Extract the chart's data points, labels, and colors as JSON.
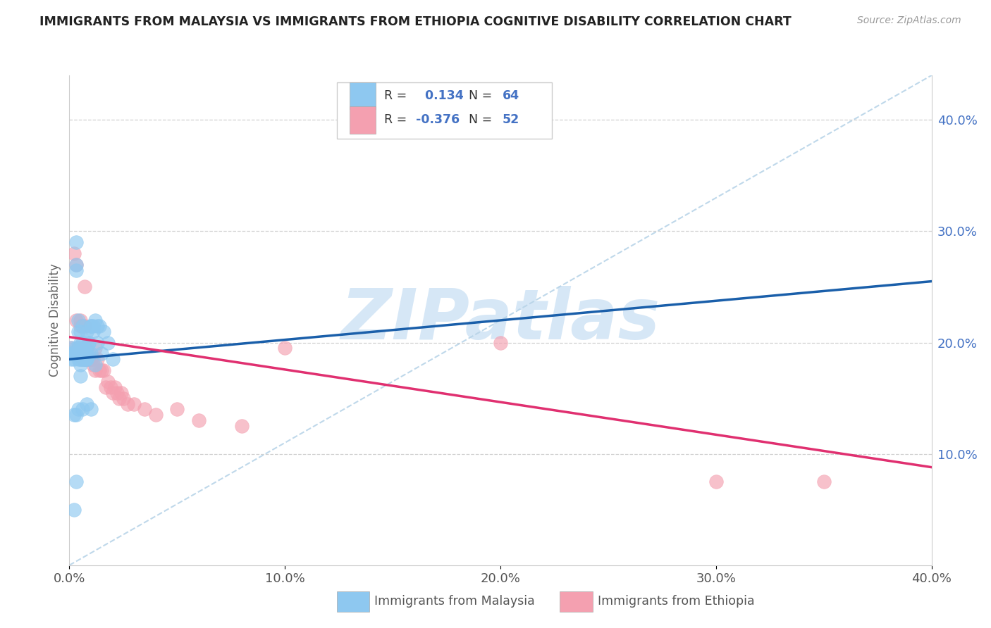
{
  "title": "IMMIGRANTS FROM MALAYSIA VS IMMIGRANTS FROM ETHIOPIA COGNITIVE DISABILITY CORRELATION CHART",
  "source": "Source: ZipAtlas.com",
  "ylabel": "Cognitive Disability",
  "xmin": 0.0,
  "xmax": 0.4,
  "ymin": 0.0,
  "ymax": 0.44,
  "yticks_right": [
    0.1,
    0.2,
    0.3,
    0.4
  ],
  "xtick_vals": [
    0.0,
    0.1,
    0.2,
    0.3,
    0.4
  ],
  "malaysia_color": "#8ec8f0",
  "ethiopia_color": "#f4a0b0",
  "malaysia_line_color": "#1a5faa",
  "ethiopia_line_color": "#e03070",
  "ref_line_color": "#b8d4e8",
  "malaysia_R": 0.134,
  "malaysia_N": 64,
  "ethiopia_R": -0.376,
  "ethiopia_N": 52,
  "malaysia_line_x0": 0.0,
  "malaysia_line_y0": 0.185,
  "malaysia_line_x1": 0.4,
  "malaysia_line_y1": 0.255,
  "ethiopia_line_x0": 0.0,
  "ethiopia_line_y0": 0.205,
  "ethiopia_line_x1": 0.4,
  "ethiopia_line_y1": 0.088,
  "ref_line_x0": 0.0,
  "ref_line_y0": 0.0,
  "ref_line_x1": 0.4,
  "ref_line_y1": 0.44,
  "malaysia_x": [
    0.001,
    0.001,
    0.002,
    0.002,
    0.002,
    0.003,
    0.003,
    0.003,
    0.003,
    0.004,
    0.004,
    0.004,
    0.004,
    0.004,
    0.004,
    0.005,
    0.005,
    0.005,
    0.005,
    0.005,
    0.005,
    0.006,
    0.006,
    0.006,
    0.006,
    0.006,
    0.006,
    0.007,
    0.007,
    0.007,
    0.007,
    0.007,
    0.008,
    0.008,
    0.008,
    0.008,
    0.008,
    0.009,
    0.009,
    0.009,
    0.01,
    0.01,
    0.01,
    0.011,
    0.011,
    0.012,
    0.012,
    0.013,
    0.013,
    0.014,
    0.015,
    0.016,
    0.018,
    0.02,
    0.003,
    0.004,
    0.002,
    0.006,
    0.008,
    0.01,
    0.003,
    0.002,
    0.001,
    0.005
  ],
  "malaysia_y": [
    0.195,
    0.185,
    0.19,
    0.185,
    0.19,
    0.29,
    0.27,
    0.265,
    0.195,
    0.21,
    0.22,
    0.19,
    0.195,
    0.185,
    0.19,
    0.2,
    0.21,
    0.185,
    0.185,
    0.19,
    0.18,
    0.19,
    0.195,
    0.185,
    0.19,
    0.2,
    0.215,
    0.19,
    0.185,
    0.195,
    0.185,
    0.185,
    0.19,
    0.185,
    0.19,
    0.185,
    0.21,
    0.2,
    0.19,
    0.2,
    0.19,
    0.215,
    0.215,
    0.21,
    0.215,
    0.22,
    0.18,
    0.2,
    0.215,
    0.215,
    0.19,
    0.21,
    0.2,
    0.185,
    0.135,
    0.14,
    0.135,
    0.14,
    0.145,
    0.14,
    0.075,
    0.05,
    0.19,
    0.17
  ],
  "ethiopia_x": [
    0.001,
    0.002,
    0.002,
    0.003,
    0.003,
    0.003,
    0.004,
    0.004,
    0.005,
    0.005,
    0.005,
    0.006,
    0.006,
    0.006,
    0.007,
    0.007,
    0.007,
    0.008,
    0.008,
    0.008,
    0.009,
    0.009,
    0.01,
    0.01,
    0.011,
    0.011,
    0.012,
    0.012,
    0.013,
    0.014,
    0.015,
    0.016,
    0.017,
    0.018,
    0.019,
    0.02,
    0.021,
    0.022,
    0.023,
    0.024,
    0.025,
    0.027,
    0.03,
    0.035,
    0.04,
    0.05,
    0.06,
    0.08,
    0.2,
    0.3,
    0.35,
    0.1
  ],
  "ethiopia_y": [
    0.195,
    0.19,
    0.28,
    0.27,
    0.19,
    0.22,
    0.195,
    0.195,
    0.19,
    0.215,
    0.22,
    0.19,
    0.185,
    0.195,
    0.215,
    0.25,
    0.185,
    0.195,
    0.185,
    0.195,
    0.185,
    0.185,
    0.185,
    0.185,
    0.18,
    0.185,
    0.195,
    0.175,
    0.185,
    0.175,
    0.175,
    0.175,
    0.16,
    0.165,
    0.16,
    0.155,
    0.16,
    0.155,
    0.15,
    0.155,
    0.15,
    0.145,
    0.145,
    0.14,
    0.135,
    0.14,
    0.13,
    0.125,
    0.2,
    0.075,
    0.075,
    0.195
  ],
  "background_color": "#ffffff",
  "grid_color": "#d0d0d0",
  "title_color": "#222222",
  "watermark_color": "#cfe3f5",
  "legend_malaysia_label": "Immigrants from Malaysia",
  "legend_ethiopia_label": "Immigrants from Ethiopia"
}
